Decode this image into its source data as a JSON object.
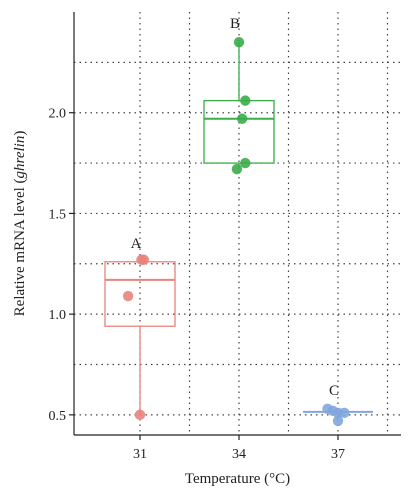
{
  "chart_data": {
    "type": "box",
    "xlabel": "Temperature (°C)",
    "ylabel_main": "Relative mRNA level (",
    "ylabel_italic": "ghrelin",
    "ylabel_close": ")",
    "ylim": [
      0.4,
      2.5
    ],
    "yticks": [
      0.5,
      1.0,
      1.5,
      2.0
    ],
    "ytick_labels": [
      "0.5",
      "1.0",
      "1.5",
      "2.0"
    ],
    "grid": true,
    "categories": [
      "31",
      "34",
      "37"
    ],
    "groups": [
      {
        "category": "31",
        "letter": "A",
        "color": "#e8837c",
        "q1": 0.94,
        "median": 1.17,
        "q3": 1.26,
        "whisker_low": 0.5,
        "whisker_high": 1.26,
        "points": [
          {
            "dx": 0.04,
            "y": 1.27
          },
          {
            "dx": 0.11,
            "y": 1.27
          },
          {
            "dx": -0.34,
            "y": 1.09
          },
          {
            "dx": 0.0,
            "y": 0.5
          }
        ]
      },
      {
        "category": "34",
        "letter": "B",
        "color": "#3aad4a",
        "q1": 1.75,
        "median": 1.97,
        "q3": 2.06,
        "whisker_low": 1.72,
        "whisker_high": 2.35,
        "points": [
          {
            "dx": 0.0,
            "y": 2.35
          },
          {
            "dx": 0.18,
            "y": 2.06
          },
          {
            "dx": 0.09,
            "y": 1.97
          },
          {
            "dx": 0.18,
            "y": 1.75
          },
          {
            "dx": -0.06,
            "y": 1.72
          }
        ]
      },
      {
        "category": "37",
        "letter": "C",
        "color": "#7fa7dd",
        "q1": 0.51,
        "median": 0.515,
        "q3": 0.52,
        "whisker_low": 0.47,
        "whisker_high": 0.53,
        "points": [
          {
            "dx": -0.3,
            "y": 0.53
          },
          {
            "dx": -0.15,
            "y": 0.52
          },
          {
            "dx": 0.0,
            "y": 0.51
          },
          {
            "dx": 0.18,
            "y": 0.51
          },
          {
            "dx": 0.0,
            "y": 0.47
          }
        ]
      }
    ]
  }
}
